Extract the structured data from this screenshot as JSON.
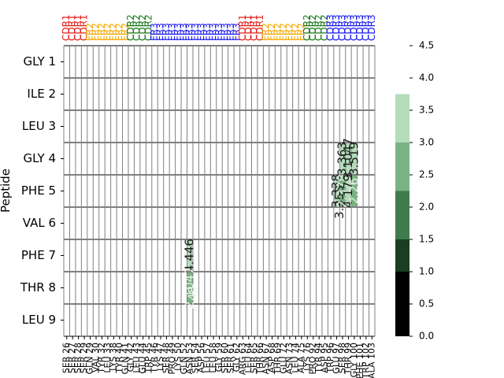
{
  "chart_data": {
    "type": "heatmap",
    "title": "",
    "xlabel": "",
    "ylabel": "Peptide",
    "rows": [
      "GLY 1",
      "ILE 2",
      "LEU 3",
      "GLY 4",
      "PHE 5",
      "VAL 6",
      "PHE 7",
      "THR 8",
      "LEU 9"
    ],
    "columns": [
      "SER 26",
      "SER 27",
      "SER 28",
      "SER 29",
      "GLN 29",
      "VAL 30",
      "TYR 32",
      "LEU 33",
      "LYS 38",
      "TYR 40",
      "GLN 41",
      "GLY 42",
      "LEU 43",
      "GLU 44",
      "TRP 45",
      "TYR 46",
      "LYS 47",
      "SER 48",
      "PRO 49",
      "LYS 50",
      "GLN 52",
      "ASN 53",
      "SER 54",
      "ASP 56",
      "LEU 57",
      "LEU 58",
      "GLY 59",
      "SER 60",
      "SER 61",
      "GLY 62",
      "ARG 63",
      "LEU 64",
      "SER 65",
      "THR 66",
      "ASN 67",
      "ASP 68",
      "THR 69",
      "GLU 72",
      "ASN 73",
      "LEU 74",
      "ALA 75",
      "LYS 76",
      "PRO 92",
      "TYR 94",
      "ASP 95",
      "TRP 96",
      "GLU 97",
      "SER 98",
      "THR 99",
      "GLY 100",
      "PHE 101",
      "TRP 102",
      "ALA 103"
    ],
    "column_regions": [
      "CDR1",
      "CDR1",
      "CDR1",
      "CDR1",
      "FR2",
      "FR2",
      "FR2",
      "FR2",
      "FR2",
      "FR2",
      "FR2",
      "CDR2",
      "CDR2",
      "CDR2",
      "CDR2",
      "FR3",
      "FR3",
      "FR3",
      "FR3",
      "FR3",
      "FR3",
      "FR3",
      "FR3",
      "FR3",
      "FR3",
      "FR3",
      "FR3",
      "FR3",
      "FR3",
      "FR3",
      "CDR1",
      "CDR1",
      "CDR1",
      "CDR1",
      "FR2",
      "FR2",
      "FR2",
      "FR2",
      "FR2",
      "FR2",
      "FR2",
      "CDR2",
      "CDR2",
      "CDR2",
      "CDR2",
      "CDR3",
      "CDR3",
      "CDR3",
      "CDR3",
      "CDR3",
      "CDR3",
      "CDR3",
      "CDR3"
    ],
    "region_colors": {
      "CDR1": "#e0201c",
      "FR2": "#f5a800",
      "CDR2": "#1a7a1a",
      "FR3": "#1a1aee",
      "CDR3": "#1a1aee"
    },
    "cells": [
      {
        "row": "PHE 7",
        "column": "ASN 53",
        "value": 4.446
      },
      {
        "row": "THR 8",
        "column": "ASN 53",
        "value": 2.1047
      },
      {
        "row": "THR 8",
        "column": "ASN 53",
        "value": 2.48
      },
      {
        "row": "PHE 5",
        "column": "GLU 97",
        "value": 3.338
      },
      {
        "row": "PHE 5",
        "column": "GLU 97",
        "value": 3.353
      },
      {
        "row": "GLY 4",
        "column": "SER 98",
        "value": 3.363
      },
      {
        "row": "PHE 5",
        "column": "SER 98",
        "value": 2.378
      },
      {
        "row": "GLY 4",
        "column": "THR 99",
        "value": 3.1047
      },
      {
        "row": "PHE 5",
        "column": "THR 99",
        "value": 4.179
      },
      {
        "row": "GLY 4",
        "column": "GLY 100",
        "value": 3.519
      },
      {
        "row": "PHE 5",
        "column": "GLY 100",
        "value": 2.26
      }
    ],
    "colorbar": {
      "range": [
        0,
        4.5
      ],
      "ticks": [
        "0.0",
        "0.5",
        "1.0",
        "1.5",
        "2.0",
        "2.5",
        "3.0",
        "3.5",
        "4.0",
        "4.5"
      ],
      "bands": [
        {
          "from": 0.0,
          "to": 1.0,
          "color": "#000000"
        },
        {
          "from": 1.0,
          "to": 1.5,
          "color": "#1b3d22"
        },
        {
          "from": 1.5,
          "to": 2.25,
          "color": "#3f7c4c"
        },
        {
          "from": 2.25,
          "to": 3.0,
          "color": "#79b383"
        },
        {
          "from": 3.0,
          "to": 3.75,
          "color": "#b5dcbb"
        }
      ]
    },
    "grid": true,
    "grid_color": "#808080"
  }
}
